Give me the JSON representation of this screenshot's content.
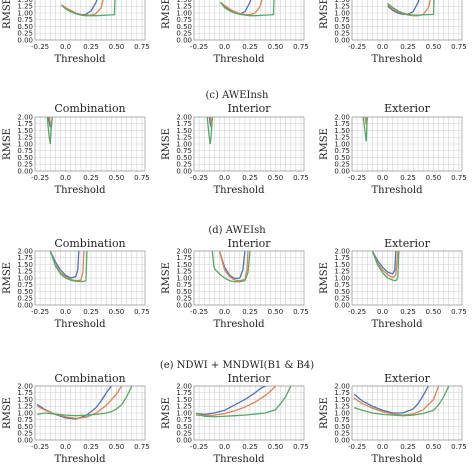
{
  "sections": [
    {
      "id": "b",
      "title": "",
      "panel_titles": [
        "",
        "",
        ""
      ],
      "ylabel": "RMSE",
      "xlabel": "Threshold"
    },
    {
      "id": "c",
      "title": "(c) AWEInsh",
      "panel_titles": [
        "Combination",
        "Interior",
        "Exterior"
      ],
      "ylabel": "RMSE",
      "xlabel": "Threshold"
    },
    {
      "id": "d",
      "title": "(d) AWEIsh",
      "panel_titles": [
        "Combination",
        "Interior",
        "Exterior"
      ],
      "ylabel": "RMSE",
      "xlabel": "Threshold"
    },
    {
      "id": "e",
      "title": "(e) NDWI + MNDWI(B1 & B4)",
      "panel_titles": [
        "Combination",
        "Interior",
        "Exterior"
      ],
      "ylabel": "RMSE",
      "xlabel": "Threshold"
    }
  ],
  "axes": {
    "xticks": [
      "-0.25",
      "0.0",
      "0.25",
      "0.50",
      "0.75"
    ],
    "yticks": [
      "0.00",
      "0.25",
      "0.50",
      "0.75",
      "1.00",
      "1.25",
      "1.50",
      "1.75",
      "2.00"
    ],
    "xlim": [
      -0.3,
      0.78
    ],
    "ylim": [
      0,
      2.0
    ],
    "grid": true
  },
  "colors": {
    "blue": "#4c72b0",
    "orange": "#dd8452",
    "green": "#55a868"
  },
  "chart_data": [
    {
      "type": "line",
      "section": "b",
      "panel": 0,
      "series": [
        {
          "color": "blue",
          "x": [
            -0.04,
            0.0,
            0.05,
            0.1,
            0.15,
            0.2,
            0.25,
            0.3,
            0.35
          ],
          "y": [
            1.3,
            1.18,
            1.07,
            0.98,
            0.93,
            0.95,
            1.08,
            1.4,
            2.0
          ]
        },
        {
          "color": "orange",
          "x": [
            -0.04,
            0.0,
            0.05,
            0.1,
            0.15,
            0.2,
            0.25,
            0.3,
            0.35,
            0.4
          ],
          "y": [
            1.3,
            1.2,
            1.1,
            1.0,
            0.95,
            0.92,
            0.92,
            0.98,
            1.2,
            2.0
          ]
        },
        {
          "color": "green",
          "x": [
            -0.04,
            0.0,
            0.05,
            0.1,
            0.15,
            0.2,
            0.25,
            0.3,
            0.35,
            0.4,
            0.45,
            0.48,
            0.49
          ],
          "y": [
            1.3,
            1.15,
            1.05,
            0.97,
            0.92,
            0.9,
            0.9,
            0.9,
            0.91,
            0.92,
            0.93,
            0.94,
            2.0
          ]
        }
      ]
    },
    {
      "type": "line",
      "section": "b",
      "panel": 1,
      "series": [
        {
          "color": "blue",
          "x": [
            -0.04,
            0.0,
            0.05,
            0.1,
            0.15,
            0.2,
            0.25,
            0.3
          ],
          "y": [
            1.4,
            1.25,
            1.1,
            1.0,
            0.96,
            1.05,
            1.4,
            2.0
          ]
        },
        {
          "color": "orange",
          "x": [
            -0.04,
            0.0,
            0.05,
            0.1,
            0.15,
            0.2,
            0.25,
            0.3,
            0.35,
            0.4
          ],
          "y": [
            1.4,
            1.28,
            1.15,
            1.05,
            0.98,
            0.94,
            0.94,
            1.0,
            1.25,
            2.0
          ]
        },
        {
          "color": "green",
          "x": [
            -0.04,
            0.0,
            0.05,
            0.1,
            0.15,
            0.2,
            0.25,
            0.3,
            0.35,
            0.4,
            0.45,
            0.48,
            0.49
          ],
          "y": [
            1.4,
            1.2,
            1.08,
            1.0,
            0.95,
            0.92,
            0.9,
            0.9,
            0.91,
            0.92,
            0.93,
            0.94,
            2.0
          ]
        }
      ]
    },
    {
      "type": "line",
      "section": "b",
      "panel": 2,
      "series": [
        {
          "color": "blue",
          "x": [
            0.05,
            0.1,
            0.15,
            0.2,
            0.25,
            0.3,
            0.35,
            0.4
          ],
          "y": [
            1.25,
            1.1,
            1.0,
            0.95,
            0.95,
            1.05,
            1.4,
            2.0
          ]
        },
        {
          "color": "orange",
          "x": [
            0.05,
            0.1,
            0.15,
            0.2,
            0.25,
            0.3,
            0.35,
            0.4,
            0.45,
            0.5
          ],
          "y": [
            1.3,
            1.15,
            1.05,
            0.98,
            0.92,
            0.9,
            0.9,
            0.95,
            1.2,
            2.0
          ]
        },
        {
          "color": "green",
          "x": [
            0.05,
            0.1,
            0.15,
            0.2,
            0.25,
            0.3,
            0.35,
            0.4,
            0.45,
            0.5,
            0.51
          ],
          "y": [
            1.35,
            1.2,
            1.08,
            1.0,
            0.95,
            0.92,
            0.92,
            0.93,
            0.94,
            0.95,
            2.0
          ]
        }
      ]
    },
    {
      "type": "line",
      "section": "c",
      "panel": 0,
      "series": [
        {
          "color": "blue",
          "x": [
            -0.17,
            -0.16,
            -0.15
          ],
          "y": [
            2.0,
            1.8,
            1.62
          ]
        },
        {
          "color": "orange",
          "x": [
            -0.16,
            -0.15,
            -0.14,
            -0.13
          ],
          "y": [
            2.0,
            1.8,
            1.62,
            2.0
          ]
        },
        {
          "color": "green",
          "x": [
            -0.18,
            -0.17,
            -0.16,
            -0.15,
            -0.14,
            -0.13
          ],
          "y": [
            2.0,
            1.6,
            1.25,
            1.0,
            1.6,
            2.0
          ]
        }
      ]
    },
    {
      "type": "line",
      "section": "c",
      "panel": 1,
      "series": [
        {
          "color": "blue",
          "x": [
            -0.15,
            -0.14,
            -0.13,
            -0.12
          ],
          "y": [
            2.0,
            1.75,
            1.62,
            2.0
          ]
        },
        {
          "color": "orange",
          "x": [
            -0.14,
            -0.13,
            -0.12
          ],
          "y": [
            2.0,
            1.68,
            2.0
          ]
        },
        {
          "color": "green",
          "x": [
            -0.17,
            -0.16,
            -0.15,
            -0.14,
            -0.13,
            -0.12
          ],
          "y": [
            2.0,
            1.6,
            1.25,
            1.0,
            1.4,
            2.0
          ]
        }
      ]
    },
    {
      "type": "line",
      "section": "c",
      "panel": 2,
      "series": [
        {
          "color": "blue",
          "x": [
            -0.17,
            -0.16,
            -0.15
          ],
          "y": [
            2.0,
            1.8,
            2.0
          ]
        },
        {
          "color": "orange",
          "x": [
            -0.17,
            -0.16,
            -0.15
          ],
          "y": [
            2.0,
            1.7,
            2.0
          ]
        },
        {
          "color": "green",
          "x": [
            -0.19,
            -0.18,
            -0.17,
            -0.16,
            -0.15
          ],
          "y": [
            2.0,
            1.7,
            1.4,
            1.1,
            2.0
          ]
        }
      ]
    },
    {
      "type": "line",
      "section": "d",
      "panel": 0,
      "series": [
        {
          "color": "blue",
          "x": [
            -0.15,
            -0.1,
            -0.05,
            0.0,
            0.05,
            0.1,
            0.12,
            0.13
          ],
          "y": [
            2.0,
            1.6,
            1.3,
            1.1,
            1.0,
            1.05,
            1.3,
            2.0
          ]
        },
        {
          "color": "orange",
          "x": [
            -0.15,
            -0.1,
            -0.05,
            0.0,
            0.05,
            0.1,
            0.15,
            0.17,
            0.18
          ],
          "y": [
            2.0,
            1.5,
            1.2,
            1.05,
            0.95,
            0.9,
            0.92,
            1.2,
            2.0
          ]
        },
        {
          "color": "green",
          "x": [
            -0.15,
            -0.1,
            -0.05,
            0.0,
            0.05,
            0.1,
            0.15,
            0.18,
            0.2,
            0.21
          ],
          "y": [
            2.0,
            1.45,
            1.15,
            1.0,
            0.92,
            0.88,
            0.87,
            0.88,
            0.9,
            2.0
          ]
        }
      ]
    },
    {
      "type": "line",
      "section": "d",
      "panel": 1,
      "series": [
        {
          "color": "blue",
          "x": [
            -0.05,
            0.0,
            0.05,
            0.1,
            0.15,
            0.18,
            0.2
          ],
          "y": [
            2.0,
            1.4,
            1.1,
            0.98,
            1.0,
            1.3,
            2.0
          ]
        },
        {
          "color": "orange",
          "x": [
            -0.05,
            0.0,
            0.05,
            0.1,
            0.15,
            0.2,
            0.22,
            0.23
          ],
          "y": [
            2.0,
            1.3,
            1.05,
            0.92,
            0.9,
            0.95,
            1.3,
            2.0
          ]
        },
        {
          "color": "green",
          "x": [
            -0.12,
            -0.11,
            -0.1,
            -0.05,
            0.0,
            0.05,
            0.1,
            0.15,
            0.2,
            0.23,
            0.25
          ],
          "y": [
            2.0,
            1.6,
            1.35,
            1.15,
            1.0,
            0.9,
            0.86,
            0.86,
            0.9,
            1.2,
            2.0
          ]
        }
      ]
    },
    {
      "type": "line",
      "section": "d",
      "panel": 2,
      "series": [
        {
          "color": "blue",
          "x": [
            -0.1,
            -0.05,
            0.0,
            0.05,
            0.1,
            0.12,
            0.13
          ],
          "y": [
            2.0,
            1.65,
            1.4,
            1.22,
            1.15,
            1.3,
            2.0
          ]
        },
        {
          "color": "orange",
          "x": [
            -0.1,
            -0.05,
            0.0,
            0.05,
            0.1,
            0.13,
            0.15
          ],
          "y": [
            2.0,
            1.55,
            1.3,
            1.12,
            1.02,
            1.1,
            2.0
          ]
        },
        {
          "color": "green",
          "x": [
            -0.1,
            -0.05,
            0.0,
            0.05,
            0.1,
            0.13,
            0.15,
            0.16
          ],
          "y": [
            2.0,
            1.5,
            1.2,
            1.0,
            0.92,
            0.9,
            1.0,
            2.0
          ]
        }
      ]
    },
    {
      "type": "line",
      "section": "e",
      "panel": 0,
      "series": [
        {
          "color": "blue",
          "x": [
            -0.28,
            -0.2,
            -0.1,
            0.0,
            0.1,
            0.2,
            0.3,
            0.35,
            0.4,
            0.45
          ],
          "y": [
            1.32,
            1.12,
            0.95,
            0.82,
            0.78,
            0.9,
            1.2,
            1.45,
            1.75,
            2.0
          ]
        },
        {
          "color": "orange",
          "x": [
            -0.28,
            -0.2,
            -0.1,
            0.0,
            0.1,
            0.2,
            0.3,
            0.4,
            0.5,
            0.55
          ],
          "y": [
            1.26,
            1.1,
            0.96,
            0.86,
            0.8,
            0.84,
            1.0,
            1.28,
            1.7,
            2.0
          ]
        },
        {
          "color": "green",
          "x": [
            -0.28,
            -0.2,
            -0.1,
            0.0,
            0.1,
            0.2,
            0.3,
            0.4,
            0.45,
            0.5,
            0.55,
            0.6,
            0.65
          ],
          "y": [
            0.95,
            1.0,
            0.96,
            0.92,
            0.9,
            0.92,
            0.95,
            1.0,
            1.05,
            1.15,
            1.3,
            1.6,
            2.0
          ]
        }
      ]
    },
    {
      "type": "line",
      "section": "e",
      "panel": 1,
      "series": [
        {
          "color": "blue",
          "x": [
            -0.28,
            -0.2,
            -0.1,
            0.0,
            0.1,
            0.2,
            0.3,
            0.35,
            0.4
          ],
          "y": [
            0.98,
            0.95,
            1.0,
            1.1,
            1.3,
            1.5,
            1.75,
            1.9,
            2.0
          ]
        },
        {
          "color": "orange",
          "x": [
            -0.28,
            -0.2,
            -0.1,
            0.0,
            0.1,
            0.2,
            0.3,
            0.4,
            0.45,
            0.5
          ],
          "y": [
            0.92,
            0.9,
            0.92,
            0.98,
            1.08,
            1.22,
            1.4,
            1.65,
            1.8,
            2.0
          ]
        },
        {
          "color": "green",
          "x": [
            -0.28,
            -0.2,
            -0.1,
            0.0,
            0.1,
            0.2,
            0.3,
            0.4,
            0.5,
            0.55,
            0.6,
            0.65
          ],
          "y": [
            1.0,
            0.88,
            0.86,
            0.88,
            0.9,
            0.92,
            0.96,
            1.0,
            1.12,
            1.35,
            1.6,
            2.0
          ]
        }
      ]
    },
    {
      "type": "line",
      "section": "e",
      "panel": 2,
      "series": [
        {
          "color": "blue",
          "x": [
            -0.28,
            -0.2,
            -0.1,
            0.0,
            0.1,
            0.2,
            0.3,
            0.35,
            0.4,
            0.45
          ],
          "y": [
            1.7,
            1.45,
            1.25,
            1.1,
            1.0,
            1.0,
            1.15,
            1.35,
            1.65,
            2.0
          ]
        },
        {
          "color": "orange",
          "x": [
            -0.28,
            -0.2,
            -0.1,
            0.0,
            0.1,
            0.2,
            0.3,
            0.4,
            0.5,
            0.55
          ],
          "y": [
            1.55,
            1.35,
            1.18,
            1.05,
            0.96,
            0.92,
            0.96,
            1.12,
            1.5,
            2.0
          ]
        },
        {
          "color": "green",
          "x": [
            -0.28,
            -0.2,
            -0.1,
            0.0,
            0.1,
            0.2,
            0.3,
            0.4,
            0.5,
            0.55,
            0.6,
            0.65
          ],
          "y": [
            1.2,
            1.1,
            1.0,
            0.95,
            0.92,
            0.9,
            0.92,
            0.98,
            1.1,
            1.3,
            1.6,
            2.0
          ]
        }
      ]
    }
  ]
}
